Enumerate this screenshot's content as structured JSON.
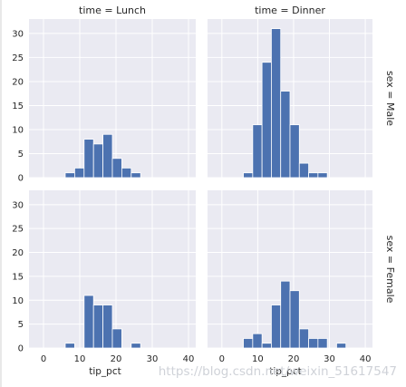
{
  "chart_data": {
    "type": "bar",
    "variant": "faceted-histogram",
    "xlabel": "tip_pct",
    "ylabel": "",
    "xlim": [
      -4,
      42
    ],
    "ylim": [
      0,
      33
    ],
    "x_ticks": [
      0,
      10,
      20,
      30,
      40
    ],
    "y_ticks": [
      0,
      5,
      10,
      15,
      20,
      25,
      30
    ],
    "grid": true,
    "bar_color": "#4c72b0",
    "panel_background": "#eaeaf2",
    "bin_edges": [
      6,
      8.6,
      11.2,
      13.8,
      16.4,
      19,
      21.6,
      24.2,
      26.8,
      29.4,
      32,
      34.6
    ],
    "facets": [
      {
        "title": "time = Lunch",
        "row_label": "sex = Male",
        "counts": [
          1,
          2,
          8,
          7,
          9,
          4,
          2,
          1,
          0,
          0,
          0
        ]
      },
      {
        "title": "time = Dinner",
        "row_label": "sex = Male",
        "counts": [
          1,
          11,
          24,
          31,
          18,
          11,
          3,
          1,
          1,
          0,
          0
        ]
      },
      {
        "title": "",
        "row_label": "sex = Female",
        "counts": [
          1,
          0,
          11,
          9,
          9,
          4,
          0,
          1,
          0,
          0,
          0
        ]
      },
      {
        "title": "",
        "row_label": "sex = Female",
        "counts": [
          2,
          3,
          1,
          9,
          14,
          12,
          4,
          2,
          2,
          0,
          1
        ]
      }
    ]
  },
  "watermark": "https://blog.csdn.net/weixin_51617547"
}
